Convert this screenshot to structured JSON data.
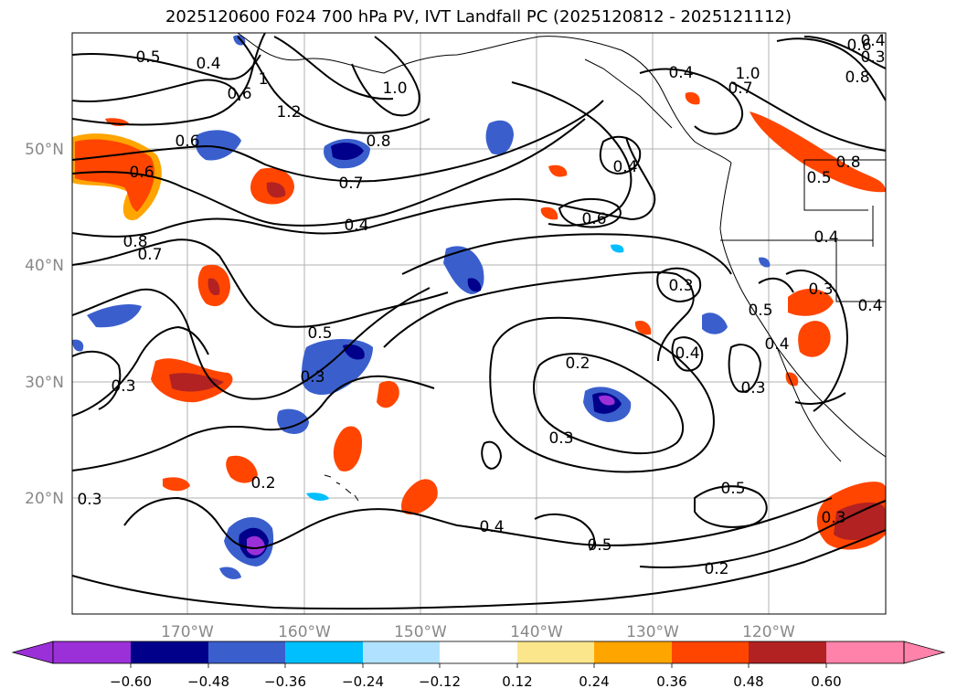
{
  "title": "2025120600 F024 700 hPa PV, IVT Landfall PC (2025120812 - 2025121112)",
  "map": {
    "lat_labels": [
      "50°N",
      "40°N",
      "30°N",
      "20°N"
    ],
    "lon_labels": [
      "170°W",
      "160°W",
      "150°W",
      "140°W",
      "130°W",
      "120°W"
    ],
    "contour_labels": [
      "0.5",
      "0.4",
      "1",
      "1.0",
      "0.6",
      "1.2",
      "0.6",
      "0.8",
      "0.6",
      "0.7",
      "0.4",
      "0.8",
      "0.7",
      "0.5",
      "0.3",
      "0.3",
      "0.2",
      "0.3",
      "0.2",
      "0.3",
      "0.4",
      "0.5",
      "0.6",
      "0.4",
      "0.4",
      "1.0",
      "0.7",
      "0.8",
      "0.5",
      "0.8",
      "0.4",
      "0.3",
      "0.4",
      "0.5",
      "0.3",
      "0.4",
      "0.3",
      "0.5",
      "0.2",
      "0.3",
      "0.6",
      "0.4",
      "0.3",
      "0.4"
    ]
  },
  "colorbar": {
    "tick_labels": [
      "−0.60",
      "−0.48",
      "−0.36",
      "−0.24",
      "−0.12",
      "0.12",
      "0.24",
      "0.36",
      "0.48",
      "0.60"
    ],
    "colors": [
      "#9b30d8",
      "#00008b",
      "#3a5fcd",
      "#00bfff",
      "#b0e2ff",
      "#ffffff",
      "#fce68b",
      "#ffa500",
      "#ff4500",
      "#b22222",
      "#ff82ab"
    ]
  }
}
